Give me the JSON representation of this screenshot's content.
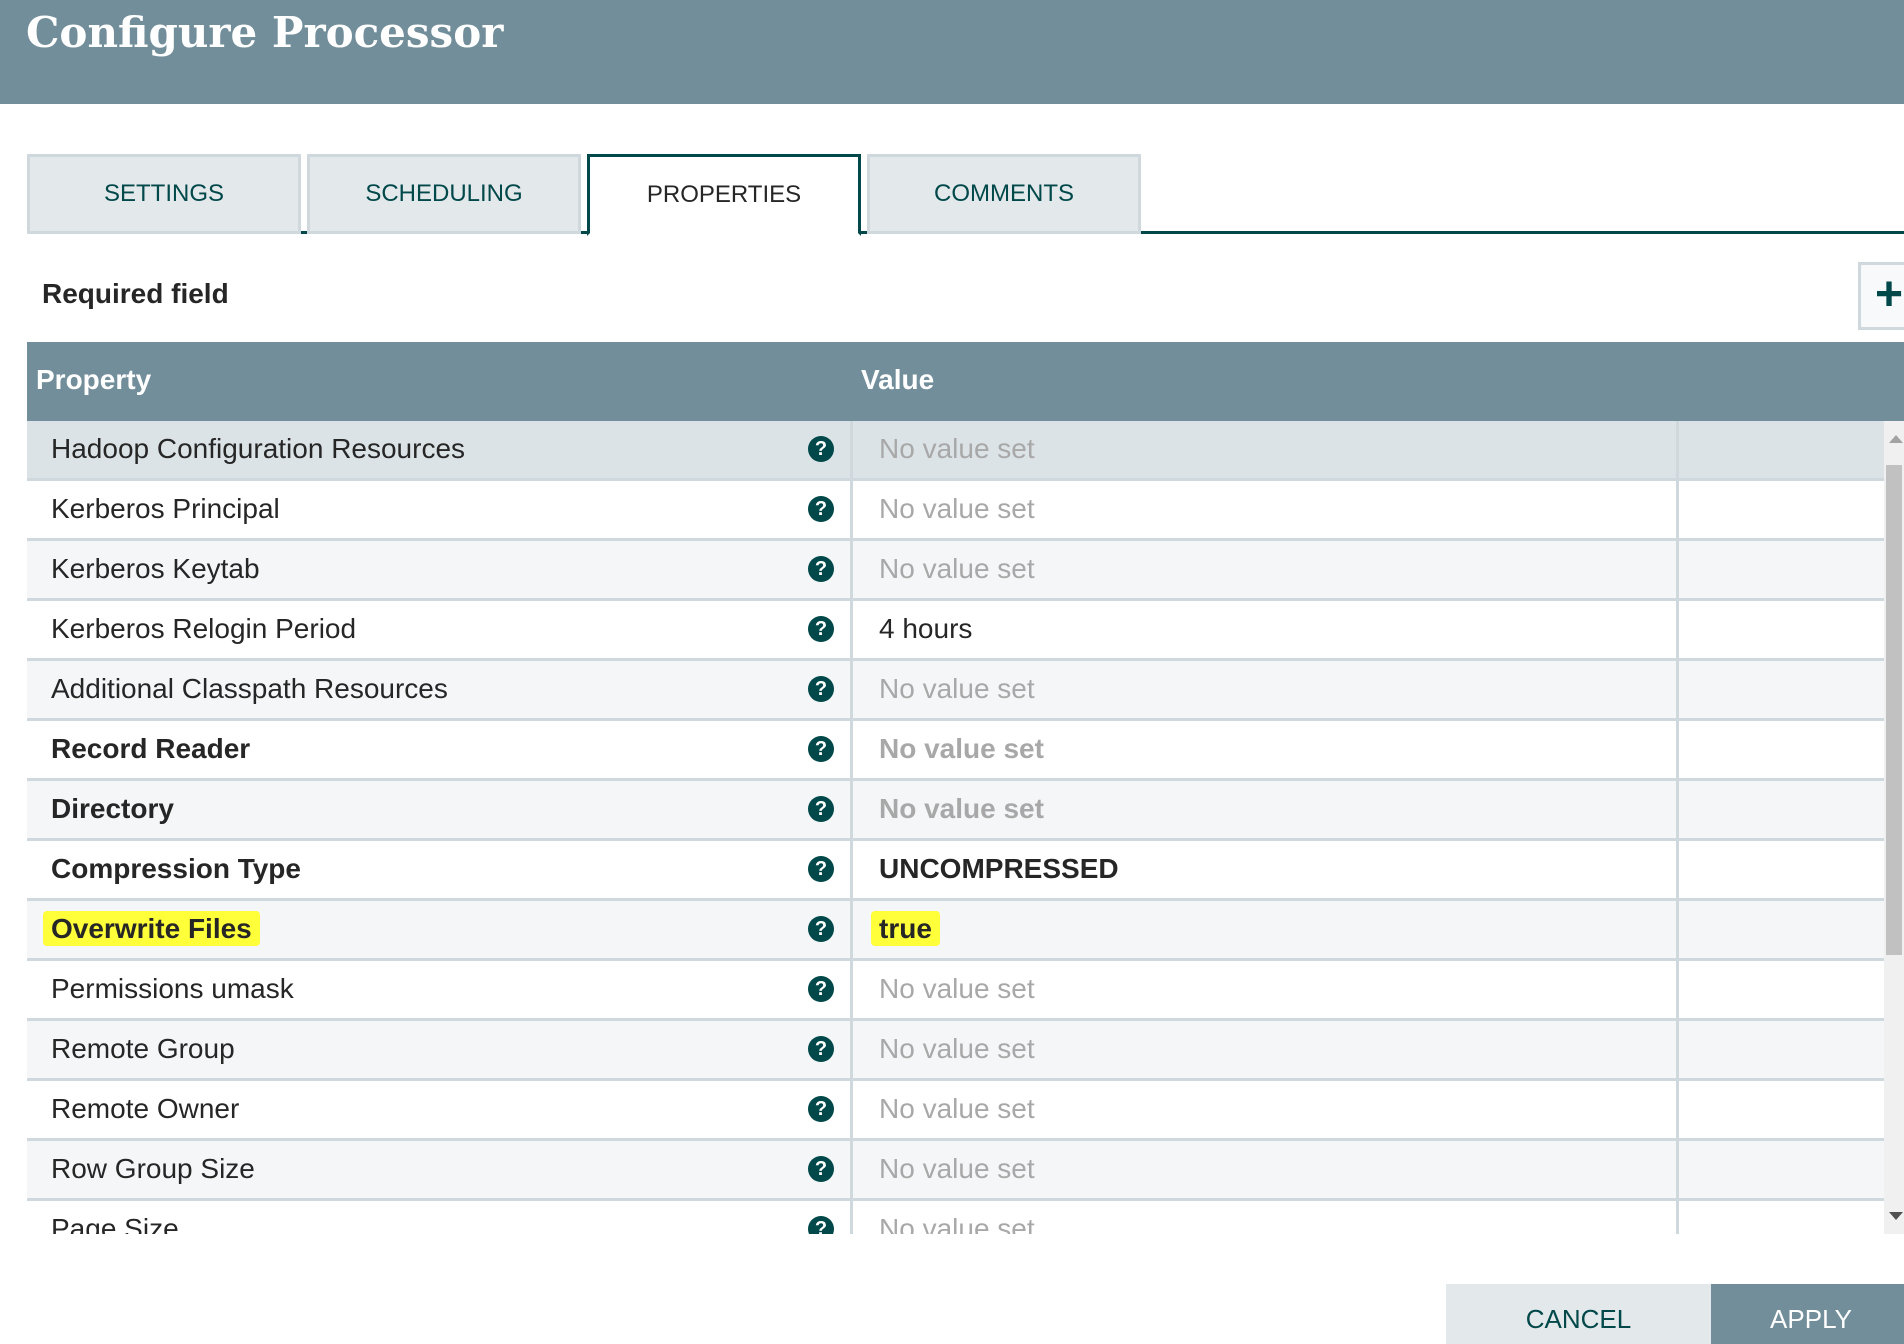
{
  "header": {
    "title": "Configure Processor"
  },
  "tabs": [
    {
      "label": "SETTINGS"
    },
    {
      "label": "SCHEDULING"
    },
    {
      "label": "PROPERTIES",
      "active": true
    },
    {
      "label": "COMMENTS"
    }
  ],
  "required_label": "Required field",
  "add_icon": "plus-icon",
  "table": {
    "headers": {
      "property": "Property",
      "value": "Value"
    },
    "rows": [
      {
        "property": "Hadoop Configuration Resources",
        "value": "No value set",
        "required": false,
        "empty": true
      },
      {
        "property": "Kerberos Principal",
        "value": "No value set",
        "required": false,
        "empty": true
      },
      {
        "property": "Kerberos Keytab",
        "value": "No value set",
        "required": false,
        "empty": true
      },
      {
        "property": "Kerberos Relogin Period",
        "value": "4 hours",
        "required": false,
        "empty": false
      },
      {
        "property": "Additional Classpath Resources",
        "value": "No value set",
        "required": false,
        "empty": true
      },
      {
        "property": "Record Reader",
        "value": "No value set",
        "required": true,
        "empty": true
      },
      {
        "property": "Directory",
        "value": "No value set",
        "required": true,
        "empty": true
      },
      {
        "property": "Compression Type",
        "value": "UNCOMPRESSED",
        "required": true,
        "empty": false
      },
      {
        "property": "Overwrite Files",
        "value": "true",
        "required": true,
        "empty": false,
        "highlighted": true
      },
      {
        "property": "Permissions umask",
        "value": "No value set",
        "required": false,
        "empty": true
      },
      {
        "property": "Remote Group",
        "value": "No value set",
        "required": false,
        "empty": true
      },
      {
        "property": "Remote Owner",
        "value": "No value set",
        "required": false,
        "empty": true
      },
      {
        "property": "Row Group Size",
        "value": "No value set",
        "required": false,
        "empty": true
      },
      {
        "property": "Page Size",
        "value": "No value set",
        "required": false,
        "empty": true
      }
    ]
  },
  "help_icon": "?",
  "buttons": {
    "cancel": "CANCEL",
    "apply": "APPLY"
  },
  "colors": {
    "header": "#728e9b",
    "accent": "#004849",
    "highlight": "#ffff3a"
  }
}
